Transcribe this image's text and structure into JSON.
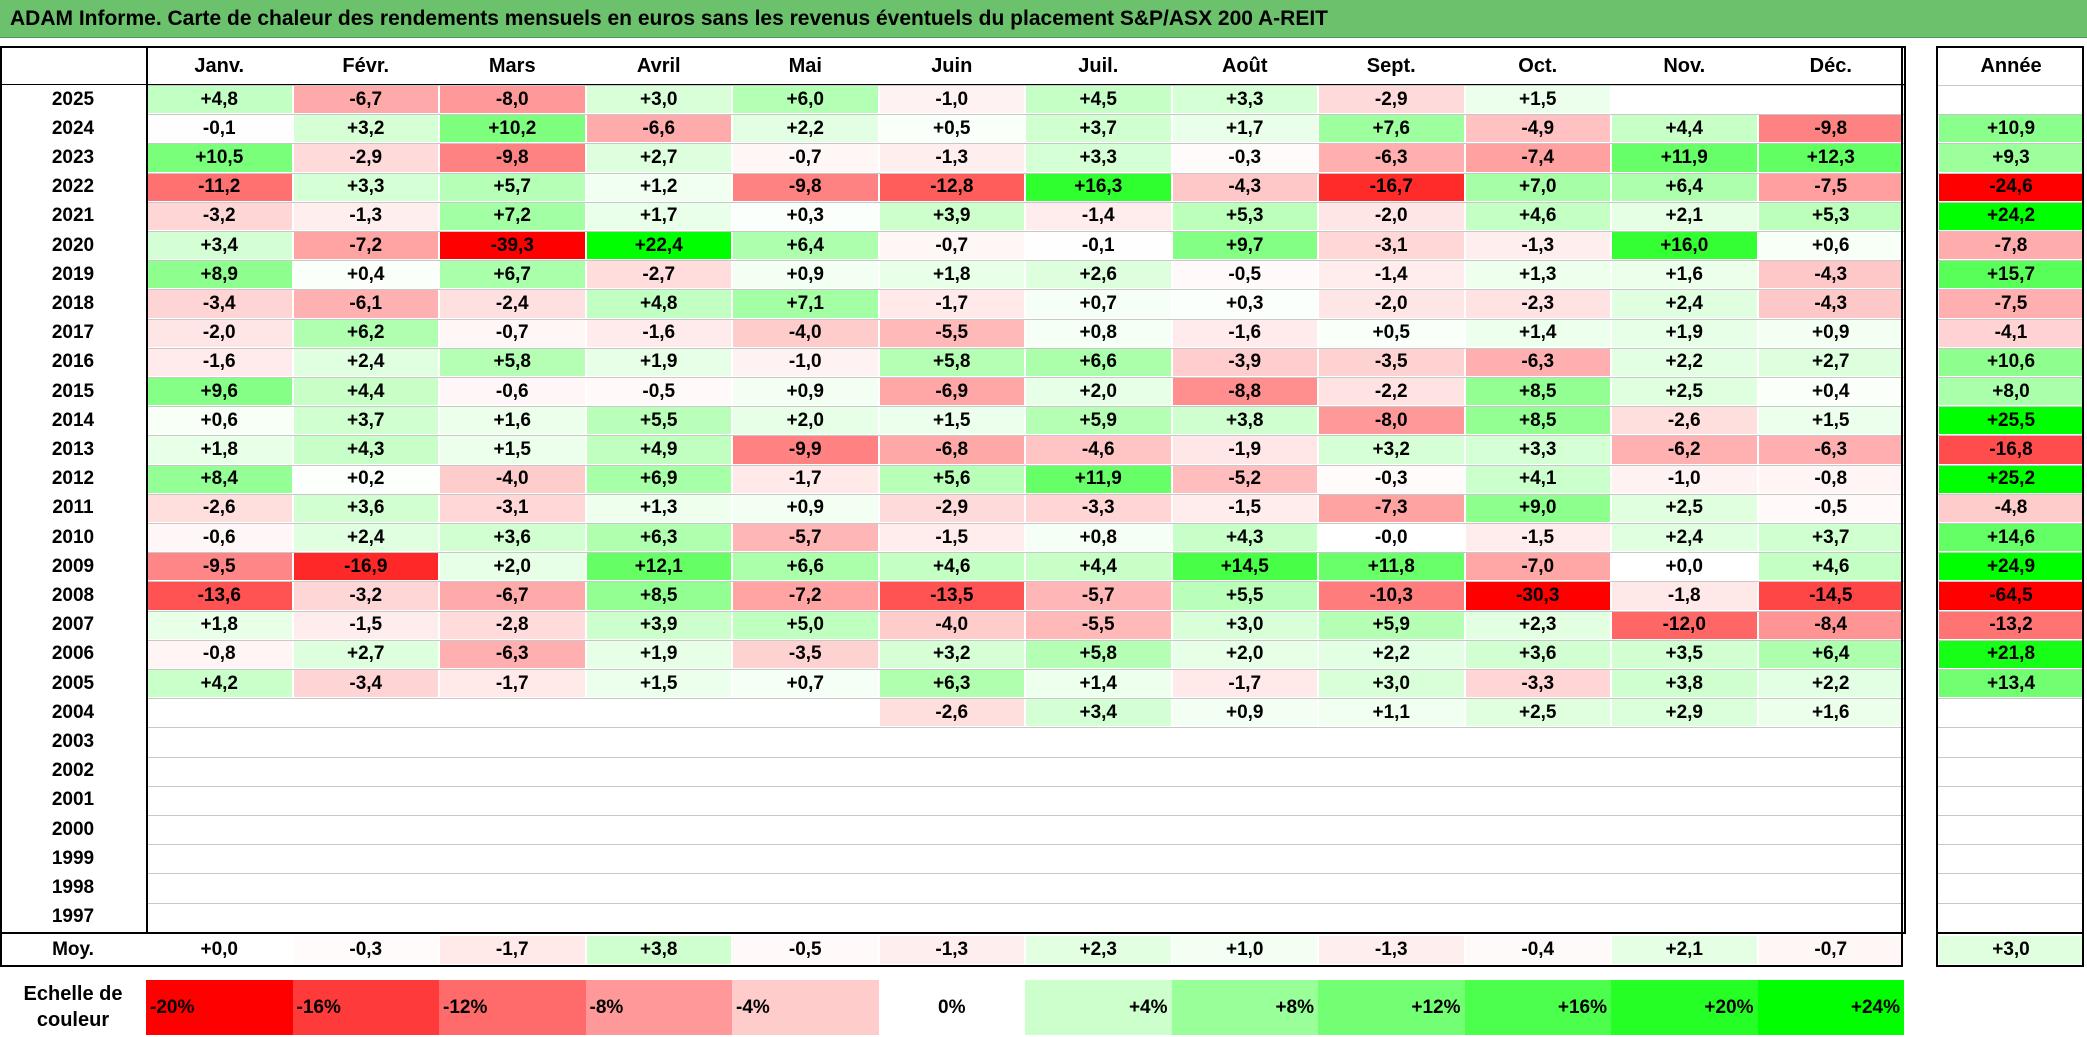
{
  "title": "ADAM Informe. Carte de chaleur des rendements mensuels en euros sans les revenus éventuels du placement S&P/ASX 200 A-REIT",
  "chart_data": {
    "type": "heatmap",
    "title": "ADAM Informe. Carte de chaleur des rendements mensuels en euros sans les revenus éventuels du placement S&P/ASX 200 A-REIT",
    "columns": [
      "Janv.",
      "Févr.",
      "Mars",
      "Avril",
      "Mai",
      "Juin",
      "Juil.",
      "Août",
      "Sept.",
      "Oct.",
      "Nov.",
      "Déc."
    ],
    "annual_header": "Année",
    "rows": [
      {
        "year": "2025",
        "values": [
          "+4,8",
          "-6,7",
          "-8,0",
          "+3,0",
          "+6,0",
          "-1,0",
          "+4,5",
          "+3,3",
          "-2,9",
          "+1,5",
          "",
          ""
        ],
        "annual": ""
      },
      {
        "year": "2024",
        "values": [
          "-0,1",
          "+3,2",
          "+10,2",
          "-6,6",
          "+2,2",
          "+0,5",
          "+3,7",
          "+1,7",
          "+7,6",
          "-4,9",
          "+4,4",
          "-9,8"
        ],
        "annual": "+10,9"
      },
      {
        "year": "2023",
        "values": [
          "+10,5",
          "-2,9",
          "-9,8",
          "+2,7",
          "-0,7",
          "-1,3",
          "+3,3",
          "-0,3",
          "-6,3",
          "-7,4",
          "+11,9",
          "+12,3"
        ],
        "annual": "+9,3"
      },
      {
        "year": "2022",
        "values": [
          "-11,2",
          "+3,3",
          "+5,7",
          "+1,2",
          "-9,8",
          "-12,8",
          "+16,3",
          "-4,3",
          "-16,7",
          "+7,0",
          "+6,4",
          "-7,5"
        ],
        "annual": "-24,6"
      },
      {
        "year": "2021",
        "values": [
          "-3,2",
          "-1,3",
          "+7,2",
          "+1,7",
          "+0,3",
          "+3,9",
          "-1,4",
          "+5,3",
          "-2,0",
          "+4,6",
          "+2,1",
          "+5,3"
        ],
        "annual": "+24,2"
      },
      {
        "year": "2020",
        "values": [
          "+3,4",
          "-7,2",
          "-39,3",
          "+22,4",
          "+6,4",
          "-0,7",
          "-0,1",
          "+9,7",
          "-3,1",
          "-1,3",
          "+16,0",
          "+0,6"
        ],
        "annual": "-7,8"
      },
      {
        "year": "2019",
        "values": [
          "+8,9",
          "+0,4",
          "+6,7",
          "-2,7",
          "+0,9",
          "+1,8",
          "+2,6",
          "-0,5",
          "-1,4",
          "+1,3",
          "+1,6",
          "-4,3"
        ],
        "annual": "+15,7"
      },
      {
        "year": "2018",
        "values": [
          "-3,4",
          "-6,1",
          "-2,4",
          "+4,8",
          "+7,1",
          "-1,7",
          "+0,7",
          "+0,3",
          "-2,0",
          "-2,3",
          "+2,4",
          "-4,3"
        ],
        "annual": "-7,5"
      },
      {
        "year": "2017",
        "values": [
          "-2,0",
          "+6,2",
          "-0,7",
          "-1,6",
          "-4,0",
          "-5,5",
          "+0,8",
          "-1,6",
          "+0,5",
          "+1,4",
          "+1,9",
          "+0,9"
        ],
        "annual": "-4,1"
      },
      {
        "year": "2016",
        "values": [
          "-1,6",
          "+2,4",
          "+5,8",
          "+1,9",
          "-1,0",
          "+5,8",
          "+6,6",
          "-3,9",
          "-3,5",
          "-6,3",
          "+2,2",
          "+2,7"
        ],
        "annual": "+10,6"
      },
      {
        "year": "2015",
        "values": [
          "+9,6",
          "+4,4",
          "-0,6",
          "-0,5",
          "+0,9",
          "-6,9",
          "+2,0",
          "-8,8",
          "-2,2",
          "+8,5",
          "+2,5",
          "+0,4"
        ],
        "annual": "+8,0"
      },
      {
        "year": "2014",
        "values": [
          "+0,6",
          "+3,7",
          "+1,6",
          "+5,5",
          "+2,0",
          "+1,5",
          "+5,9",
          "+3,8",
          "-8,0",
          "+8,5",
          "-2,6",
          "+1,5"
        ],
        "annual": "+25,5"
      },
      {
        "year": "2013",
        "values": [
          "+1,8",
          "+4,3",
          "+1,5",
          "+4,9",
          "-9,9",
          "-6,8",
          "-4,6",
          "-1,9",
          "+3,2",
          "+3,3",
          "-6,2",
          "-6,3"
        ],
        "annual": "-16,8"
      },
      {
        "year": "2012",
        "values": [
          "+8,4",
          "+0,2",
          "-4,0",
          "+6,9",
          "-1,7",
          "+5,6",
          "+11,9",
          "-5,2",
          "-0,3",
          "+4,1",
          "-1,0",
          "-0,8"
        ],
        "annual": "+25,2"
      },
      {
        "year": "2011",
        "values": [
          "-2,6",
          "+3,6",
          "-3,1",
          "+1,3",
          "+0,9",
          "-2,9",
          "-3,3",
          "-1,5",
          "-7,3",
          "+9,0",
          "+2,5",
          "-0,5"
        ],
        "annual": "-4,8"
      },
      {
        "year": "2010",
        "values": [
          "-0,6",
          "+2,4",
          "+3,6",
          "+6,3",
          "-5,7",
          "-1,5",
          "+0,8",
          "+4,3",
          "-0,0",
          "-1,5",
          "+2,4",
          "+3,7"
        ],
        "annual": "+14,6"
      },
      {
        "year": "2009",
        "values": [
          "-9,5",
          "-16,9",
          "+2,0",
          "+12,1",
          "+6,6",
          "+4,6",
          "+4,4",
          "+14,5",
          "+11,8",
          "-7,0",
          "+0,0",
          "+4,6"
        ],
        "annual": "+24,9"
      },
      {
        "year": "2008",
        "values": [
          "-13,6",
          "-3,2",
          "-6,7",
          "+8,5",
          "-7,2",
          "-13,5",
          "-5,7",
          "+5,5",
          "-10,3",
          "-30,3",
          "-1,8",
          "-14,5"
        ],
        "annual": "-64,5"
      },
      {
        "year": "2007",
        "values": [
          "+1,8",
          "-1,5",
          "-2,8",
          "+3,9",
          "+5,0",
          "-4,0",
          "-5,5",
          "+3,0",
          "+5,9",
          "+2,3",
          "-12,0",
          "-8,4"
        ],
        "annual": "-13,2"
      },
      {
        "year": "2006",
        "values": [
          "-0,8",
          "+2,7",
          "-6,3",
          "+1,9",
          "-3,5",
          "+3,2",
          "+5,8",
          "+2,0",
          "+2,2",
          "+3,6",
          "+3,5",
          "+6,4"
        ],
        "annual": "+21,8"
      },
      {
        "year": "2005",
        "values": [
          "+4,2",
          "-3,4",
          "-1,7",
          "+1,5",
          "+0,7",
          "+6,3",
          "+1,4",
          "-1,7",
          "+3,0",
          "-3,3",
          "+3,8",
          "+2,2"
        ],
        "annual": "+13,4"
      },
      {
        "year": "2004",
        "values": [
          "",
          "",
          "",
          "",
          "",
          "-2,6",
          "+3,4",
          "+0,9",
          "+1,1",
          "+2,5",
          "+2,9",
          "+1,6"
        ],
        "annual": ""
      },
      {
        "year": "2003",
        "values": [
          "",
          "",
          "",
          "",
          "",
          "",
          "",
          "",
          "",
          "",
          "",
          ""
        ],
        "annual": ""
      },
      {
        "year": "2002",
        "values": [
          "",
          "",
          "",
          "",
          "",
          "",
          "",
          "",
          "",
          "",
          "",
          ""
        ],
        "annual": ""
      },
      {
        "year": "2001",
        "values": [
          "",
          "",
          "",
          "",
          "",
          "",
          "",
          "",
          "",
          "",
          "",
          ""
        ],
        "annual": ""
      },
      {
        "year": "2000",
        "values": [
          "",
          "",
          "",
          "",
          "",
          "",
          "",
          "",
          "",
          "",
          "",
          ""
        ],
        "annual": ""
      },
      {
        "year": "1999",
        "values": [
          "",
          "",
          "",
          "",
          "",
          "",
          "",
          "",
          "",
          "",
          "",
          ""
        ],
        "annual": ""
      },
      {
        "year": "1998",
        "values": [
          "",
          "",
          "",
          "",
          "",
          "",
          "",
          "",
          "",
          "",
          "",
          ""
        ],
        "annual": ""
      },
      {
        "year": "1997",
        "values": [
          "",
          "",
          "",
          "",
          "",
          "",
          "",
          "",
          "",
          "",
          "",
          ""
        ],
        "annual": ""
      }
    ],
    "average": {
      "label": "Moy.",
      "values": [
        "+0,0",
        "-0,3",
        "-1,7",
        "+3,8",
        "-0,5",
        "-1,3",
        "+2,3",
        "+1,0",
        "-1,3",
        "-0,4",
        "+2,1",
        "-0,7"
      ],
      "annual": "+3,0"
    },
    "legend": {
      "label": "Echelle de couleur",
      "stops": [
        {
          "text": "-20%",
          "color": "#ff0000"
        },
        {
          "text": "-16%",
          "color": "#ff3a3a"
        },
        {
          "text": "-12%",
          "color": "#ff6a6a"
        },
        {
          "text": "-8%",
          "color": "#ff9999"
        },
        {
          "text": "-4%",
          "color": "#ffcccc"
        },
        {
          "text": "0%",
          "color": "#ffffff"
        },
        {
          "text": "+4%",
          "color": "#ccffcc"
        },
        {
          "text": "+8%",
          "color": "#99ff99"
        },
        {
          "text": "+12%",
          "color": "#73ff73"
        },
        {
          "text": "+16%",
          "color": "#4dff4d"
        },
        {
          "text": "+20%",
          "color": "#26ff26"
        },
        {
          "text": "+24%",
          "color": "#00ff00"
        }
      ]
    },
    "colors": {
      "title_bar": "#6cc16c",
      "max_red": "#ff0000",
      "max_green": "#00ff00"
    }
  }
}
